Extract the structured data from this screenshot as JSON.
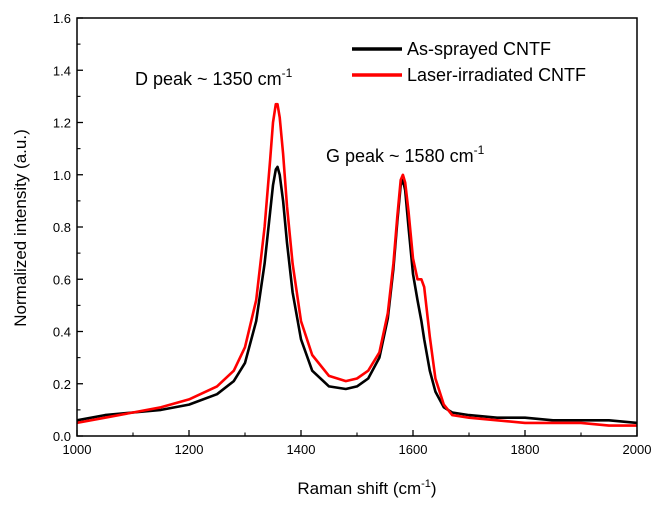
{
  "chart_data": {
    "type": "line",
    "title": "",
    "xlabel": "Raman shift (cm",
    "xlabel_sup": "-1",
    "xlabel_tail": ")",
    "ylabel": "Normalized intensity (a.u.)",
    "xlim": [
      1000,
      2000
    ],
    "ylim": [
      0.0,
      1.6
    ],
    "x_ticks": [
      1000,
      1200,
      1400,
      1600,
      1800,
      2000
    ],
    "x_tick_labels": [
      "1000",
      "1200",
      "1400",
      "1600",
      "1800",
      "2000"
    ],
    "y_ticks": [
      0.0,
      0.2,
      0.4,
      0.6,
      0.8,
      1.0,
      1.2,
      1.4,
      1.6
    ],
    "y_tick_labels": [
      "0.0",
      "0.2",
      "0.4",
      "0.6",
      "0.8",
      "1.0",
      "1.2",
      "1.4",
      "1.6"
    ],
    "grid": false,
    "legend_position": "top-right",
    "annotations": [
      {
        "text": "D peak ~ 1350 cm",
        "sup": "-1",
        "x": 1245,
        "y": 1.36
      },
      {
        "text": "G peak ~ 1580 cm",
        "sup": "-1",
        "x": 1475,
        "y": 1.06
      }
    ],
    "series": [
      {
        "name": "As-sprayed CNTF",
        "color": "#000000",
        "x": [
          1000,
          1050,
          1100,
          1150,
          1200,
          1250,
          1280,
          1300,
          1320,
          1335,
          1345,
          1350,
          1355,
          1358,
          1362,
          1368,
          1375,
          1385,
          1400,
          1420,
          1450,
          1480,
          1500,
          1520,
          1540,
          1555,
          1565,
          1572,
          1578,
          1582,
          1586,
          1592,
          1600,
          1608,
          1615,
          1620,
          1630,
          1640,
          1655,
          1670,
          1700,
          1750,
          1800,
          1850,
          1900,
          1950,
          2000
        ],
        "y": [
          0.06,
          0.08,
          0.09,
          0.1,
          0.12,
          0.16,
          0.21,
          0.28,
          0.44,
          0.66,
          0.86,
          0.96,
          1.02,
          1.03,
          1.0,
          0.9,
          0.74,
          0.55,
          0.37,
          0.25,
          0.19,
          0.18,
          0.19,
          0.22,
          0.3,
          0.45,
          0.64,
          0.82,
          0.96,
          0.98,
          0.94,
          0.8,
          0.62,
          0.52,
          0.44,
          0.37,
          0.25,
          0.17,
          0.11,
          0.09,
          0.08,
          0.07,
          0.07,
          0.06,
          0.06,
          0.06,
          0.05
        ]
      },
      {
        "name": "Laser-irradiated CNTF",
        "color": "#ff0000",
        "x": [
          1000,
          1050,
          1100,
          1150,
          1200,
          1250,
          1280,
          1300,
          1320,
          1335,
          1345,
          1350,
          1355,
          1358,
          1362,
          1368,
          1375,
          1385,
          1400,
          1420,
          1450,
          1480,
          1500,
          1520,
          1540,
          1555,
          1565,
          1572,
          1578,
          1582,
          1586,
          1592,
          1600,
          1608,
          1615,
          1620,
          1630,
          1640,
          1655,
          1670,
          1700,
          1750,
          1800,
          1850,
          1900,
          1950,
          2000
        ],
        "y": [
          0.05,
          0.07,
          0.09,
          0.11,
          0.14,
          0.19,
          0.25,
          0.34,
          0.52,
          0.8,
          1.06,
          1.2,
          1.27,
          1.27,
          1.22,
          1.08,
          0.88,
          0.66,
          0.44,
          0.31,
          0.23,
          0.21,
          0.22,
          0.25,
          0.32,
          0.47,
          0.66,
          0.84,
          0.98,
          1.0,
          0.97,
          0.86,
          0.68,
          0.6,
          0.6,
          0.57,
          0.38,
          0.22,
          0.12,
          0.08,
          0.07,
          0.06,
          0.05,
          0.05,
          0.05,
          0.04,
          0.04
        ]
      }
    ]
  }
}
